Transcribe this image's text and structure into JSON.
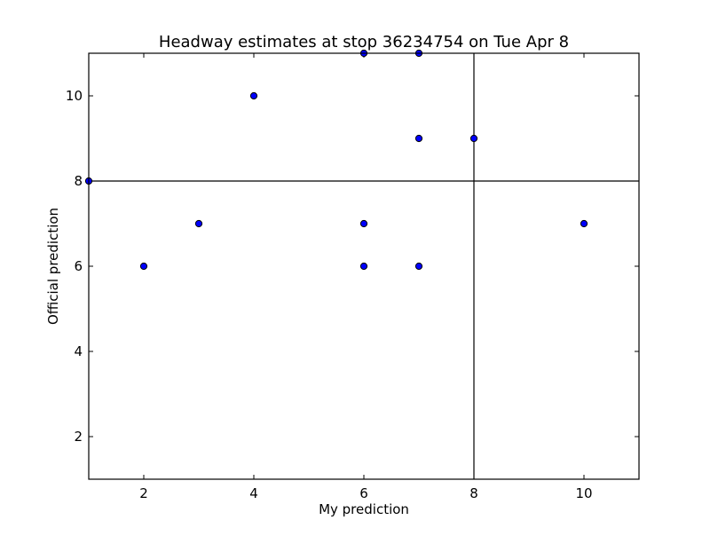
{
  "chart_data": {
    "type": "scatter",
    "title": "Headway estimates at stop 36234754 on Tue Apr 8",
    "xlabel": "My prediction",
    "ylabel": "Official prediction",
    "xlim": [
      1,
      11
    ],
    "ylim": [
      1,
      11
    ],
    "xticks": [
      2,
      4,
      6,
      8,
      10
    ],
    "yticks": [
      2,
      4,
      6,
      8,
      10
    ],
    "xtick_labels": [
      "2",
      "4",
      "6",
      "8",
      "10"
    ],
    "ytick_labels": [
      "2",
      "4",
      "6",
      "8",
      "10"
    ],
    "grid": false,
    "reference_lines": {
      "vertical_x": 8,
      "horizontal_y": 8
    },
    "marker_color": "#0000ff",
    "marker_edge_color": "#000000",
    "points": [
      {
        "x": 1,
        "y": 8
      },
      {
        "x": 2,
        "y": 6
      },
      {
        "x": 3,
        "y": 7
      },
      {
        "x": 4,
        "y": 10
      },
      {
        "x": 6,
        "y": 11
      },
      {
        "x": 6,
        "y": 7
      },
      {
        "x": 6,
        "y": 6
      },
      {
        "x": 7,
        "y": 11
      },
      {
        "x": 7,
        "y": 9
      },
      {
        "x": 7,
        "y": 6
      },
      {
        "x": 8,
        "y": 9
      },
      {
        "x": 10,
        "y": 7
      }
    ]
  }
}
